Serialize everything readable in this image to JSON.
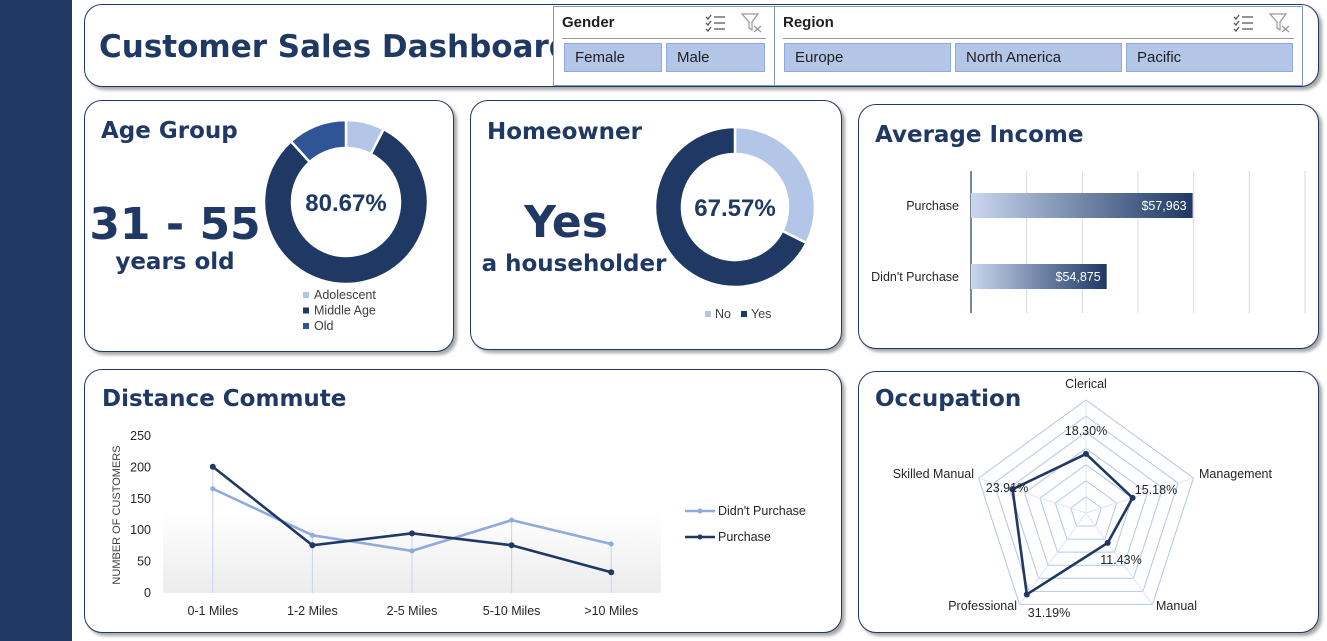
{
  "title": "Customer Sales Dashboard",
  "slicers": [
    {
      "header": "Gender",
      "items": [
        "Female",
        "Male"
      ]
    },
    {
      "header": "Region",
      "items": [
        "Europe",
        "North America",
        "Pacific"
      ]
    }
  ],
  "age_group": {
    "title": "Age Group",
    "headline": "31 - 55",
    "subline": "years old",
    "center_label": "80.67%"
  },
  "homeowner": {
    "title": "Homeowner",
    "headline": "Yes",
    "subline": "a householder",
    "center_label": "67.57%"
  },
  "average_income": {
    "title": "Average Income"
  },
  "distance_commute": {
    "title": "Distance Commute"
  },
  "occupation": {
    "title": "Occupation"
  },
  "colors": {
    "navy": "#1f3864",
    "light_blue": "#b4c6e7",
    "mid_blue": "#2f5597",
    "line_light": "#8faadc"
  },
  "chart_data": [
    {
      "id": "age-group",
      "type": "pie",
      "title": "",
      "labels": [
        "Adolescent",
        "Middle Age",
        "Old"
      ],
      "values": [
        7.6,
        80.67,
        11.73
      ],
      "colors": [
        "#b4c6e7",
        "#1f3864",
        "#2f5597"
      ],
      "legend": "bottom"
    },
    {
      "id": "homeowner",
      "type": "pie",
      "title": "",
      "labels": [
        "No",
        "Yes"
      ],
      "values": [
        32.43,
        67.57
      ],
      "colors": [
        "#b4c6e7",
        "#1f3864"
      ],
      "legend": "bottom"
    },
    {
      "id": "average-income",
      "type": "bar",
      "orientation": "horizontal",
      "categories": [
        "Purchase",
        "Didn't Purchase"
      ],
      "values": [
        57963,
        54875
      ],
      "data_labels": [
        "$57,963",
        "$54,875"
      ],
      "xlim": [
        50000,
        62000
      ],
      "grid": true
    },
    {
      "id": "distance-commute",
      "type": "line",
      "x": [
        "0-1 Miles",
        "1-2 Miles",
        "2-5 Miles",
        "5-10 Miles",
        ">10 Miles"
      ],
      "ylabel": "NUMBER OF CUSTOMERS",
      "ylim": [
        0,
        250
      ],
      "yticks": [
        0,
        50,
        100,
        150,
        200,
        250
      ],
      "series": [
        {
          "name": "Didn't Purchase",
          "values": [
            166,
            92,
            67,
            116,
            78
          ],
          "color": "#8faadc"
        },
        {
          "name": "Purchase",
          "values": [
            201,
            76,
            95,
            76,
            33
          ],
          "color": "#1f3864"
        }
      ],
      "legend": "right"
    },
    {
      "id": "occupation",
      "type": "radar",
      "categories": [
        "Clerical",
        "Management",
        "Manual",
        "Professional",
        "Skilled Manual"
      ],
      "values": [
        18.3,
        15.18,
        11.43,
        31.19,
        23.91
      ],
      "data_labels": [
        "18.30%",
        "15.18%",
        "11.43%",
        "31.19%",
        "23.91%"
      ],
      "max": 35
    }
  ]
}
